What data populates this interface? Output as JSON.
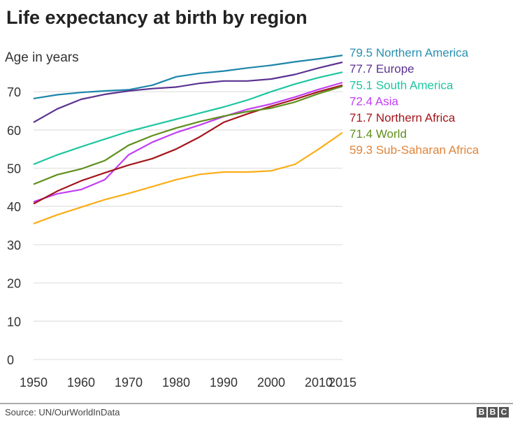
{
  "chart_data": {
    "type": "line",
    "title": "Life expectancy at birth by region",
    "ylabel": "Age in years",
    "xlabel": "",
    "xlim": [
      1950,
      2015
    ],
    "ylim": [
      0,
      80
    ],
    "x_ticks": [
      1950,
      1960,
      1970,
      1980,
      1990,
      2000,
      2010,
      2015
    ],
    "y_ticks": [
      0,
      10,
      20,
      30,
      40,
      50,
      60,
      70
    ],
    "grid": true,
    "legend": "right (end-of-line labels)",
    "x": [
      1950,
      1955,
      1960,
      1965,
      1970,
      1975,
      1980,
      1985,
      1990,
      1995,
      2000,
      2005,
      2010,
      2015
    ],
    "series": [
      {
        "name": "Northern America",
        "end_label": "79.5",
        "color": "#1d86ab",
        "label_color": "#2a90b0",
        "values": [
          68.2,
          69.2,
          69.8,
          70.2,
          70.5,
          71.7,
          73.9,
          74.8,
          75.4,
          76.2,
          76.9,
          77.8,
          78.6,
          79.5
        ]
      },
      {
        "name": "Europe",
        "end_label": "77.7",
        "color": "#5c3292",
        "label_color": "#5c3292",
        "values": [
          62.0,
          65.5,
          68.0,
          69.3,
          70.2,
          70.8,
          71.2,
          72.2,
          72.8,
          72.8,
          73.3,
          74.5,
          76.2,
          77.7
        ]
      },
      {
        "name": "South America",
        "end_label": "75.1",
        "color": "#1ec6a0",
        "label_color": "#1ec6a0",
        "values": [
          51.0,
          53.5,
          55.6,
          57.6,
          59.6,
          61.2,
          62.8,
          64.4,
          66.0,
          67.8,
          70.0,
          72.0,
          73.7,
          75.1
        ]
      },
      {
        "name": "Asia",
        "end_label": "72.4",
        "color": "#c23ef5",
        "label_color": "#c23ef5",
        "values": [
          41.2,
          43.3,
          44.4,
          47.0,
          53.5,
          56.8,
          59.3,
          61.3,
          63.5,
          65.4,
          66.8,
          68.6,
          70.6,
          72.4
        ]
      },
      {
        "name": "Northern Africa",
        "end_label": "71.7",
        "color": "#a3161b",
        "label_color": "#a3161b",
        "values": [
          40.7,
          44.0,
          46.7,
          48.8,
          50.8,
          52.5,
          55.0,
          58.2,
          62.0,
          64.2,
          66.2,
          68.0,
          70.0,
          71.7
        ]
      },
      {
        "name": "World",
        "end_label": "71.4",
        "color": "#5f8f1c",
        "label_color": "#5f8f1c",
        "values": [
          45.8,
          48.3,
          49.8,
          52.0,
          56.0,
          58.5,
          60.5,
          62.2,
          63.6,
          64.8,
          65.7,
          67.3,
          69.5,
          71.4
        ]
      },
      {
        "name": "Sub-Saharan Africa",
        "end_label": "59.3",
        "color": "#fbad17",
        "label_color": "#e0843a",
        "values": [
          35.5,
          37.8,
          39.8,
          41.8,
          43.4,
          45.2,
          47.0,
          48.4,
          49.0,
          49.0,
          49.3,
          51.0,
          55.0,
          59.3
        ]
      }
    ]
  },
  "footer": {
    "source": "Source: UN/OurWorldInData",
    "logo": [
      "B",
      "B",
      "C"
    ]
  }
}
